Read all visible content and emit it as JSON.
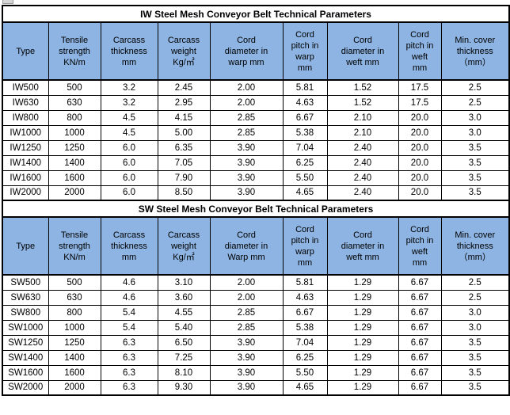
{
  "colors": {
    "header_fill": "#8DB4E2",
    "border": "#000000",
    "title_fill": "#FFFFFF",
    "text": "#000000"
  },
  "sections": [
    {
      "id": "iw",
      "title": "IW Steel Mesh Conveyor Belt Technical Parameters",
      "columns": [
        "Type",
        "Tensile\nstrength\nKN/m",
        "Carcass\nthickness\nmm",
        "Carcass\nweight\nKg/㎡",
        "Cord\ndiameter in\nwarp mm",
        "Cord\npitch in\nwarp\nmm",
        "Cord\ndiameter in\nweft mm",
        "Cord\npitch in\nweft\nmm",
        "Min. cover\nthickness\n（mm）"
      ],
      "rows": [
        [
          "IW500",
          "500",
          "3.2",
          "2.45",
          "2.00",
          "5.81",
          "1.52",
          "17.5",
          "2.5"
        ],
        [
          "IW630",
          "630",
          "3.2",
          "2.95",
          "2.00",
          "4.63",
          "1.52",
          "17.5",
          "2.5"
        ],
        [
          "IW800",
          "800",
          "4.5",
          "4.15",
          "2.85",
          "6.67",
          "2.10",
          "20.0",
          "3.0"
        ],
        [
          "IW1000",
          "1000",
          "4.5",
          "5.00",
          "2.85",
          "5.38",
          "2.10",
          "20.0",
          "3.0"
        ],
        [
          "IW1250",
          "1250",
          "6.0",
          "6.35",
          "3.90",
          "7.04",
          "2.40",
          "20.0",
          "3.5"
        ],
        [
          "IW1400",
          "1400",
          "6.0",
          "7.05",
          "3.90",
          "6.25",
          "2.40",
          "20.0",
          "3.5"
        ],
        [
          "IW1600",
          "1600",
          "6.0",
          "7.90",
          "3.90",
          "5.50",
          "2.40",
          "20.0",
          "3.5"
        ],
        [
          "IW2000",
          "2000",
          "6.0",
          "8.50",
          "3.90",
          "4.65",
          "2.40",
          "20.0",
          "3.5"
        ]
      ]
    },
    {
      "id": "sw",
      "title": "SW Steel Mesh Conveyor Belt Technical Parameters",
      "columns": [
        "Type",
        "Tensile\nstrength\nKN/m",
        "Carcass\nthickness\nmm",
        "Carcass\nweight\nKg/㎡",
        "Cord\ndiameter in\nWarp mm",
        "Cord\npitch in\nwarp\nmm",
        "Cord\ndiameter in\nweft mm",
        "Cord\npitch in\nweft\nmm",
        "Min. cover\nthickness\n（mm）"
      ],
      "rows": [
        [
          "SW500",
          "500",
          "4.6",
          "3.10",
          "2.00",
          "5.81",
          "1.29",
          "6.67",
          "2.5"
        ],
        [
          "SW630",
          "630",
          "4.6",
          "3.60",
          "2.00",
          "4.63",
          "1.29",
          "6.67",
          "2.5"
        ],
        [
          "SW800",
          "800",
          "5.4",
          "4.55",
          "2.85",
          "6.67",
          "1.29",
          "6.67",
          "3.0"
        ],
        [
          "SW1000",
          "1000",
          "5.4",
          "5.40",
          "2.85",
          "5.38",
          "1.29",
          "6.67",
          "3.0"
        ],
        [
          "SW1250",
          "1250",
          "6.3",
          "6.50",
          "3.90",
          "7.04",
          "1.29",
          "6.67",
          "3.5"
        ],
        [
          "SW1400",
          "1400",
          "6.3",
          "7.25",
          "3.90",
          "6.25",
          "1.29",
          "6.67",
          "3.5"
        ],
        [
          "SW1600",
          "1600",
          "6.3",
          "8.10",
          "3.90",
          "5.50",
          "1.29",
          "6.67",
          "3.5"
        ],
        [
          "SW2000",
          "2000",
          "6.3",
          "9.30",
          "3.90",
          "4.65",
          "1.29",
          "6.67",
          "3.5"
        ]
      ]
    }
  ]
}
